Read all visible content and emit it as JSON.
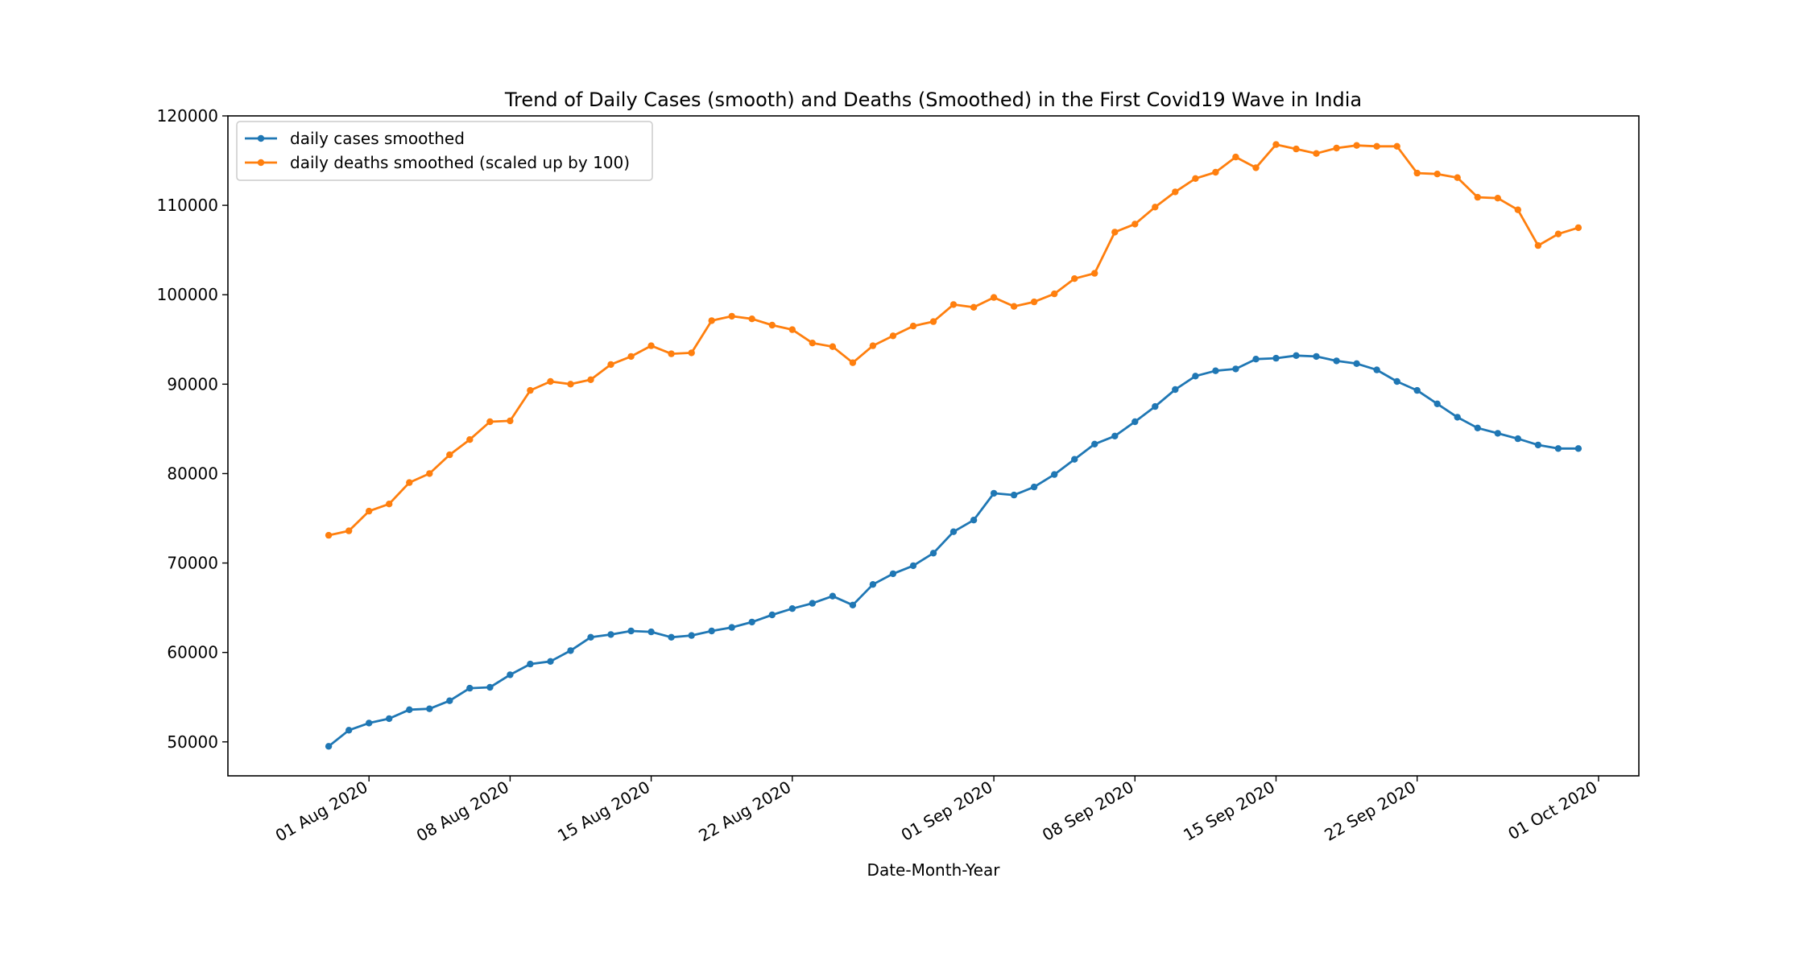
{
  "chart_data": {
    "type": "line",
    "title": "Trend of Daily Cases (smooth) and Deaths (Smoothed) in the First Covid19 Wave in India",
    "xlabel": "Date-Month-Year",
    "ylabel": "",
    "ylim": [
      46200,
      120000
    ],
    "xlim": [
      "2020-07-25",
      "2020-10-03"
    ],
    "yticks": [
      50000,
      60000,
      70000,
      80000,
      90000,
      100000,
      110000,
      120000
    ],
    "ytick_labels": [
      "50000",
      "60000",
      "70000",
      "80000",
      "90000",
      "100000",
      "110000",
      "120000"
    ],
    "xticks": [
      "2020-08-01",
      "2020-08-08",
      "2020-08-15",
      "2020-08-22",
      "2020-09-01",
      "2020-09-08",
      "2020-09-15",
      "2020-09-22",
      "2020-10-01"
    ],
    "xtick_labels": [
      "01 Aug 2020",
      "08 Aug 2020",
      "15 Aug 2020",
      "22 Aug 2020",
      "01 Sep 2020",
      "08 Sep 2020",
      "15 Sep 2020",
      "22 Sep 2020",
      "01 Oct 2020"
    ],
    "x": [
      "2020-07-30",
      "2020-07-31",
      "2020-08-01",
      "2020-08-02",
      "2020-08-03",
      "2020-08-04",
      "2020-08-05",
      "2020-08-06",
      "2020-08-07",
      "2020-08-08",
      "2020-08-09",
      "2020-08-10",
      "2020-08-11",
      "2020-08-12",
      "2020-08-13",
      "2020-08-14",
      "2020-08-15",
      "2020-08-16",
      "2020-08-17",
      "2020-08-18",
      "2020-08-19",
      "2020-08-20",
      "2020-08-21",
      "2020-08-22",
      "2020-08-23",
      "2020-08-24",
      "2020-08-25",
      "2020-08-26",
      "2020-08-27",
      "2020-08-28",
      "2020-08-29",
      "2020-08-30",
      "2020-08-31",
      "2020-09-01",
      "2020-09-02",
      "2020-09-03",
      "2020-09-04",
      "2020-09-05",
      "2020-09-06",
      "2020-09-07",
      "2020-09-08",
      "2020-09-09",
      "2020-09-10",
      "2020-09-11",
      "2020-09-12",
      "2020-09-13",
      "2020-09-14",
      "2020-09-15",
      "2020-09-16",
      "2020-09-17",
      "2020-09-18",
      "2020-09-19",
      "2020-09-20",
      "2020-09-21",
      "2020-09-22",
      "2020-09-23",
      "2020-09-24",
      "2020-09-25",
      "2020-09-26",
      "2020-09-27",
      "2020-09-28",
      "2020-09-29",
      "2020-09-30"
    ],
    "series": [
      {
        "name": "daily cases smoothed",
        "color": "#1f77b4",
        "values": [
          49500,
          51300,
          52100,
          52600,
          53600,
          53700,
          54600,
          56000,
          56100,
          57500,
          58700,
          59000,
          60200,
          61700,
          62000,
          62400,
          62300,
          61700,
          61900,
          62400,
          62800,
          63400,
          64200,
          64900,
          65500,
          66300,
          65300,
          67600,
          68800,
          69700,
          71100,
          73500,
          74800,
          77800,
          77600,
          78500,
          79900,
          81600,
          83300,
          84200,
          85800,
          87500,
          89400,
          90900,
          91500,
          91700,
          92800,
          92900,
          93200,
          93100,
          92600,
          92300,
          91600,
          90300,
          89300,
          87800,
          86300,
          85100,
          84500,
          83900,
          83200,
          82800,
          82800
        ]
      },
      {
        "name": "daily deaths smoothed (scaled up by 100)",
        "color": "#ff7f0e",
        "values": [
          73100,
          73600,
          75800,
          76600,
          79000,
          80000,
          82100,
          83800,
          85800,
          85900,
          89300,
          90300,
          90000,
          90500,
          92200,
          93100,
          94300,
          93400,
          93500,
          97100,
          97600,
          97300,
          96600,
          96100,
          94600,
          94200,
          92400,
          94300,
          95400,
          96500,
          97000,
          98900,
          98600,
          99700,
          98700,
          99200,
          100100,
          101800,
          102400,
          107000,
          107900,
          109800,
          111500,
          113000,
          113700,
          115400,
          114200,
          116800,
          116300,
          115800,
          116400,
          116700,
          116600,
          116600,
          113600,
          113500,
          113100,
          110900,
          110800,
          109500,
          105500,
          106800,
          107500
        ]
      }
    ],
    "legend": {
      "placement": "top-left"
    },
    "grid": false
  }
}
